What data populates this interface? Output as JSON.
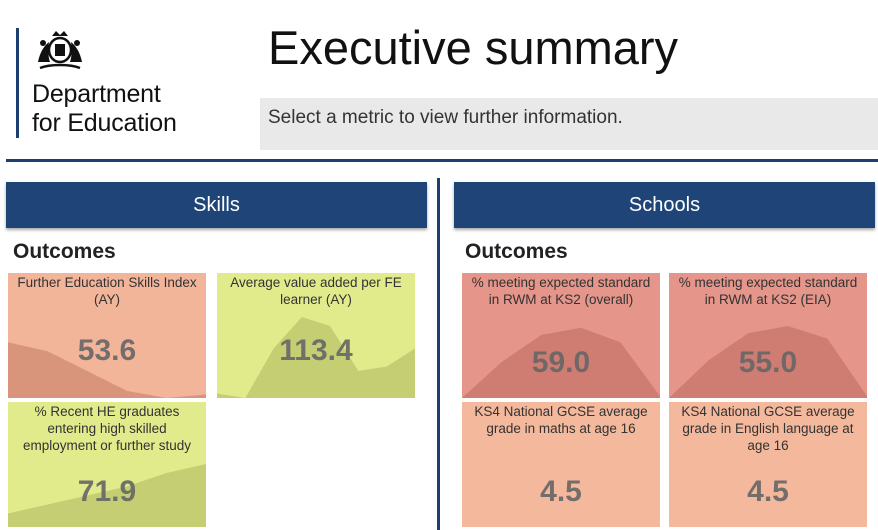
{
  "header": {
    "department_line1": "Department",
    "department_line2": "for Education",
    "title": "Executive summary",
    "instruction": "Select a metric to view further information."
  },
  "colors": {
    "navy": "#1f4578",
    "tile_orange": "#f3b59a",
    "tile_yellow_green": "#e2eb8c",
    "tile_red": "#e5958a",
    "tile_light_orange": "#f4b89c"
  },
  "panels": [
    {
      "heading": "Skills",
      "section": "Outcomes",
      "tiles": [
        {
          "label": "Further Education Skills Index (AY)",
          "value": "53.6",
          "trend": [
            0.62,
            0.52,
            0.3,
            0.08,
            0.0,
            0.04
          ]
        },
        {
          "label": "Average value added per FE learner (AY)",
          "value": "113.4",
          "trend": [
            0.05,
            0.0,
            0.55,
            0.9,
            0.8,
            0.3,
            0.35,
            0.55
          ]
        },
        {
          "label": "% Recent HE graduates entering high skilled employment or further study",
          "value": "71.9",
          "trend": [
            0.15,
            0.25,
            0.35,
            0.45,
            0.6,
            0.7
          ]
        }
      ]
    },
    {
      "heading": "Schools",
      "section": "Outcomes",
      "tiles": [
        {
          "label": "% meeting expected standard in RWM at KS2 (overall)",
          "value": "59.0",
          "trend": [
            0.0,
            0.4,
            0.7,
            0.78,
            0.62,
            0.02
          ]
        },
        {
          "label": "% meeting expected standard in RWM at KS2 (EIA)",
          "value": "55.0",
          "trend": [
            0.0,
            0.42,
            0.72,
            0.8,
            0.66,
            0.02
          ]
        },
        {
          "label": "KS4 National GCSE average grade in maths at age 16",
          "value": "4.5",
          "trend": []
        },
        {
          "label": "KS4 National GCSE average grade in English language at age 16",
          "value": "4.5",
          "trend": []
        }
      ]
    }
  ]
}
